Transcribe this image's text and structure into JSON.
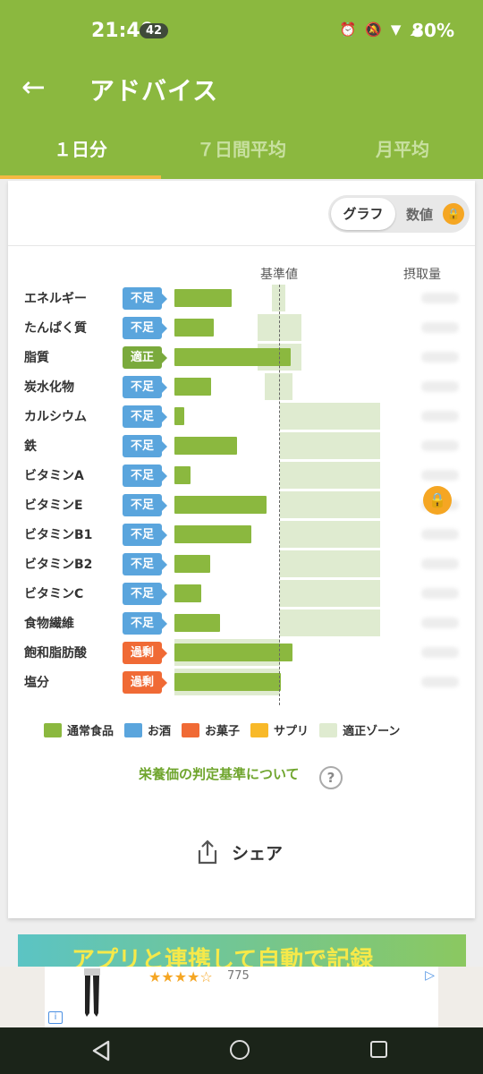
{
  "status": {
    "time": "21:40",
    "notification_count": "42",
    "battery": "80%"
  },
  "app_bar": {
    "title": "アドバイス"
  },
  "tabs": [
    {
      "label": "１日分",
      "active": true
    },
    {
      "label": "７日間平均",
      "active": false
    },
    {
      "label": "月平均",
      "active": false
    }
  ],
  "toggle": {
    "graph_label": "グラフ",
    "value_label": "数値"
  },
  "columns": {
    "reference": "基準値",
    "intake": "摂取量"
  },
  "chart_data": {
    "type": "bar",
    "categories": [
      "エネルギー",
      "たんぱく質",
      "脂質",
      "炭水化物",
      "カルシウム",
      "鉄",
      "ビタミンA",
      "ビタミンE",
      "ビタミンB1",
      "ビタミンB2",
      "ビタミンC",
      "食物繊維",
      "飽和脂肪酸",
      "塩分"
    ],
    "status": [
      "不足",
      "不足",
      "適正",
      "不足",
      "不足",
      "不足",
      "不足",
      "不足",
      "不足",
      "不足",
      "不足",
      "不足",
      "過剰",
      "過剰"
    ],
    "status_type": [
      "short",
      "short",
      "ok",
      "short",
      "short",
      "short",
      "short",
      "short",
      "short",
      "short",
      "short",
      "short",
      "over",
      "over"
    ],
    "reference_percent": 100,
    "values_percent": [
      54,
      37,
      110,
      35,
      9,
      59,
      15,
      87,
      73,
      34,
      25,
      43,
      112,
      101
    ],
    "ok_zone_percent": [
      [
        92,
        105
      ],
      [
        79,
        120
      ],
      [
        79,
        120
      ],
      [
        86,
        112
      ],
      [
        100,
        195
      ],
      [
        100,
        195
      ],
      [
        100,
        195
      ],
      [
        100,
        195
      ],
      [
        100,
        195
      ],
      [
        100,
        195
      ],
      [
        100,
        195
      ],
      [
        100,
        195
      ],
      [
        0,
        100
      ],
      [
        0,
        100
      ]
    ]
  },
  "legend": [
    {
      "label": "通常食品",
      "color": "#8bb83f"
    },
    {
      "label": "お酒",
      "color": "#5aa5dd"
    },
    {
      "label": "お菓子",
      "color": "#f06a35"
    },
    {
      "label": "サプリ",
      "color": "#f8b929"
    },
    {
      "label": "適正ゾーン",
      "color": "#dfebd0"
    }
  ],
  "criteria_link": "栄養価の判定基準について",
  "share_label": "シェア",
  "banner_text": "アプリと連携して自動で記録",
  "ad": {
    "rating": "★★★★☆",
    "count": "775",
    "info": "i"
  }
}
